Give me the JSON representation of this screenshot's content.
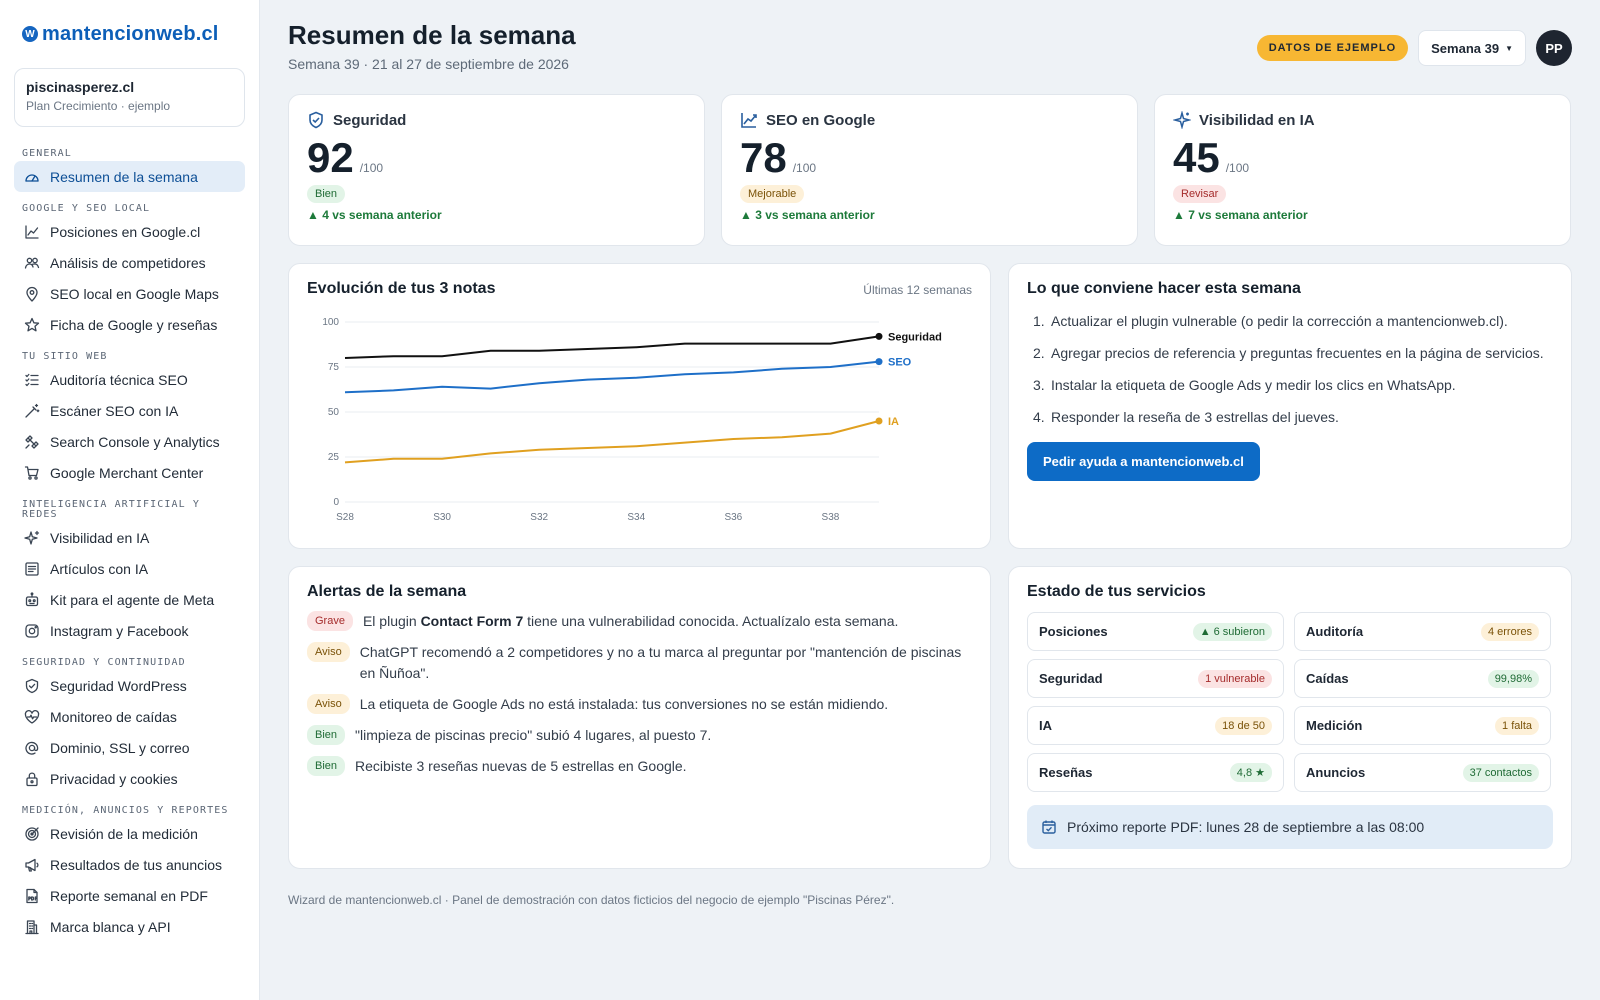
{
  "brand": {
    "name": "mantencionweb.cl",
    "icon": "wordpress-icon"
  },
  "account": {
    "name": "piscinasperez.cl",
    "plan": "Plan Crecimiento · ejemplo"
  },
  "sidebar": {
    "sections": [
      {
        "title": "General",
        "items": [
          {
            "label": "Resumen de la semana",
            "icon": "gauge-icon",
            "active": true
          }
        ]
      },
      {
        "title": "Google y SEO local",
        "items": [
          {
            "label": "Posiciones en Google.cl",
            "icon": "trend-icon"
          },
          {
            "label": "Análisis de competidores",
            "icon": "users-icon"
          },
          {
            "label": "SEO local en Google Maps",
            "icon": "map-pin-icon"
          },
          {
            "label": "Ficha de Google y reseñas",
            "icon": "star-icon"
          }
        ]
      },
      {
        "title": "Tu sitio web",
        "items": [
          {
            "label": "Auditoría técnica SEO",
            "icon": "checklist-icon"
          },
          {
            "label": "Escáner SEO con IA",
            "icon": "wand-icon"
          },
          {
            "label": "Search Console y Analytics",
            "icon": "satellite-icon"
          },
          {
            "label": "Google Merchant Center",
            "icon": "cart-icon"
          }
        ]
      },
      {
        "title": "Inteligencia artificial y redes",
        "items": [
          {
            "label": "Visibilidad en IA",
            "icon": "sparkles-icon"
          },
          {
            "label": "Artículos con IA",
            "icon": "article-icon"
          },
          {
            "label": "Kit para el agente de Meta",
            "icon": "robot-icon"
          },
          {
            "label": "Instagram y Facebook",
            "icon": "instagram-icon"
          }
        ]
      },
      {
        "title": "Seguridad y continuidad",
        "items": [
          {
            "label": "Seguridad WordPress",
            "icon": "shield-icon"
          },
          {
            "label": "Monitoreo de caídas",
            "icon": "heartbeat-icon"
          },
          {
            "label": "Dominio, SSL y correo",
            "icon": "at-icon"
          },
          {
            "label": "Privacidad y cookies",
            "icon": "lock-icon"
          }
        ]
      },
      {
        "title": "Medición, anuncios y reportes",
        "items": [
          {
            "label": "Revisión de la medición",
            "icon": "target-icon"
          },
          {
            "label": "Resultados de tus anuncios",
            "icon": "megaphone-icon"
          },
          {
            "label": "Reporte semanal en PDF",
            "icon": "pdf-icon"
          },
          {
            "label": "Marca blanca y API",
            "icon": "building-icon"
          }
        ]
      }
    ]
  },
  "header": {
    "title": "Resumen de la semana",
    "subtitle": "Semana 39 · 21 al 27 de septiembre de 2026",
    "demo_badge": "DATOS DE EJEMPLO",
    "week_selector": "Semana 39",
    "avatar_initials": "PP"
  },
  "scores": [
    {
      "label": "Seguridad",
      "icon": "shield-check-icon",
      "value": "92",
      "max": "/100",
      "status": "Bien",
      "status_kind": "good",
      "delta": "▲ 4 vs semana anterior"
    },
    {
      "label": "SEO en Google",
      "icon": "chart-line-icon",
      "value": "78",
      "max": "/100",
      "status": "Mejorable",
      "status_kind": "warn",
      "delta": "▲ 3 vs semana anterior"
    },
    {
      "label": "Visibilidad en IA",
      "icon": "sparkles-icon",
      "value": "45",
      "max": "/100",
      "status": "Revisar",
      "status_kind": "bad",
      "delta": "▲ 7 vs semana anterior"
    }
  ],
  "chart": {
    "title": "Evolución de tus 3 notas",
    "hint": "Últimas 12 semanas"
  },
  "chart_data": {
    "type": "line",
    "x": [
      "S28",
      "S29",
      "S30",
      "S31",
      "S32",
      "S33",
      "S34",
      "S35",
      "S36",
      "S37",
      "S38",
      "S39"
    ],
    "x_tick_labels": [
      "S28",
      "S30",
      "S32",
      "S34",
      "S36",
      "S38"
    ],
    "y_ticks": [
      0,
      25,
      50,
      75,
      100
    ],
    "ylim": [
      0,
      100
    ],
    "grid": true,
    "series": [
      {
        "name": "Seguridad",
        "color": "#111111",
        "values": [
          80,
          81,
          81,
          84,
          84,
          85,
          86,
          88,
          88,
          88,
          88,
          92
        ]
      },
      {
        "name": "SEO",
        "color": "#1e6fc8",
        "values": [
          61,
          62,
          64,
          63,
          66,
          68,
          69,
          71,
          72,
          74,
          75,
          78
        ]
      },
      {
        "name": "IA",
        "color": "#e0a020",
        "values": [
          22,
          24,
          24,
          27,
          29,
          30,
          31,
          33,
          35,
          36,
          38,
          45
        ]
      }
    ]
  },
  "todo": {
    "title": "Lo que conviene hacer esta semana",
    "items": [
      "Actualizar el plugin vulnerable (o pedir la corrección a mantencionweb.cl).",
      "Agregar precios de referencia y preguntas frecuentes en la página de servicios.",
      "Instalar la etiqueta de Google Ads y medir los clics en WhatsApp.",
      "Responder la reseña de 3 estrellas del jueves."
    ],
    "button": "Pedir ayuda a mantencionweb.cl"
  },
  "alerts": {
    "title": "Alertas de la semana",
    "items": [
      {
        "tag": "Grave",
        "kind": "grave",
        "before": "El plugin ",
        "bold": "Contact Form 7",
        "after": " tiene una vulnerabilidad conocida. Actualízalo esta semana."
      },
      {
        "tag": "Aviso",
        "kind": "aviso",
        "before": "ChatGPT recomendó a 2 competidores y no a tu marca al preguntar por \"mantención de piscinas en Ñuñoa\".",
        "bold": "",
        "after": ""
      },
      {
        "tag": "Aviso",
        "kind": "aviso",
        "before": "La etiqueta de Google Ads no está instalada: tus conversiones no se están midiendo.",
        "bold": "",
        "after": ""
      },
      {
        "tag": "Bien",
        "kind": "bien",
        "before": "\"limpieza de piscinas precio\" subió 4 lugares, al puesto 7.",
        "bold": "",
        "after": ""
      },
      {
        "tag": "Bien",
        "kind": "bien",
        "before": "Recibiste 3 reseñas nuevas de 5 estrellas en Google.",
        "bold": "",
        "after": ""
      }
    ]
  },
  "services": {
    "title": "Estado de tus servicios",
    "items": [
      {
        "name": "Posiciones",
        "badge": "▲ 6 subieron",
        "kind": "good"
      },
      {
        "name": "Auditoría",
        "badge": "4 errores",
        "kind": "warn"
      },
      {
        "name": "Seguridad",
        "badge": "1 vulnerable",
        "kind": "bad"
      },
      {
        "name": "Caídas",
        "badge": "99,98%",
        "kind": "good"
      },
      {
        "name": "IA",
        "badge": "18 de 50",
        "kind": "warn"
      },
      {
        "name": "Medición",
        "badge": "1 falta",
        "kind": "warn"
      },
      {
        "name": "Reseñas",
        "badge": "4,8 ★",
        "kind": "good"
      },
      {
        "name": "Anuncios",
        "badge": "37 contactos",
        "kind": "good"
      }
    ],
    "next_report": "Próximo reporte PDF: lunes 28 de septiembre a las 08:00"
  },
  "footer": "Wizard de mantencionweb.cl · Panel de demostración con datos ficticios del negocio de ejemplo \"Piscinas Pérez\"."
}
